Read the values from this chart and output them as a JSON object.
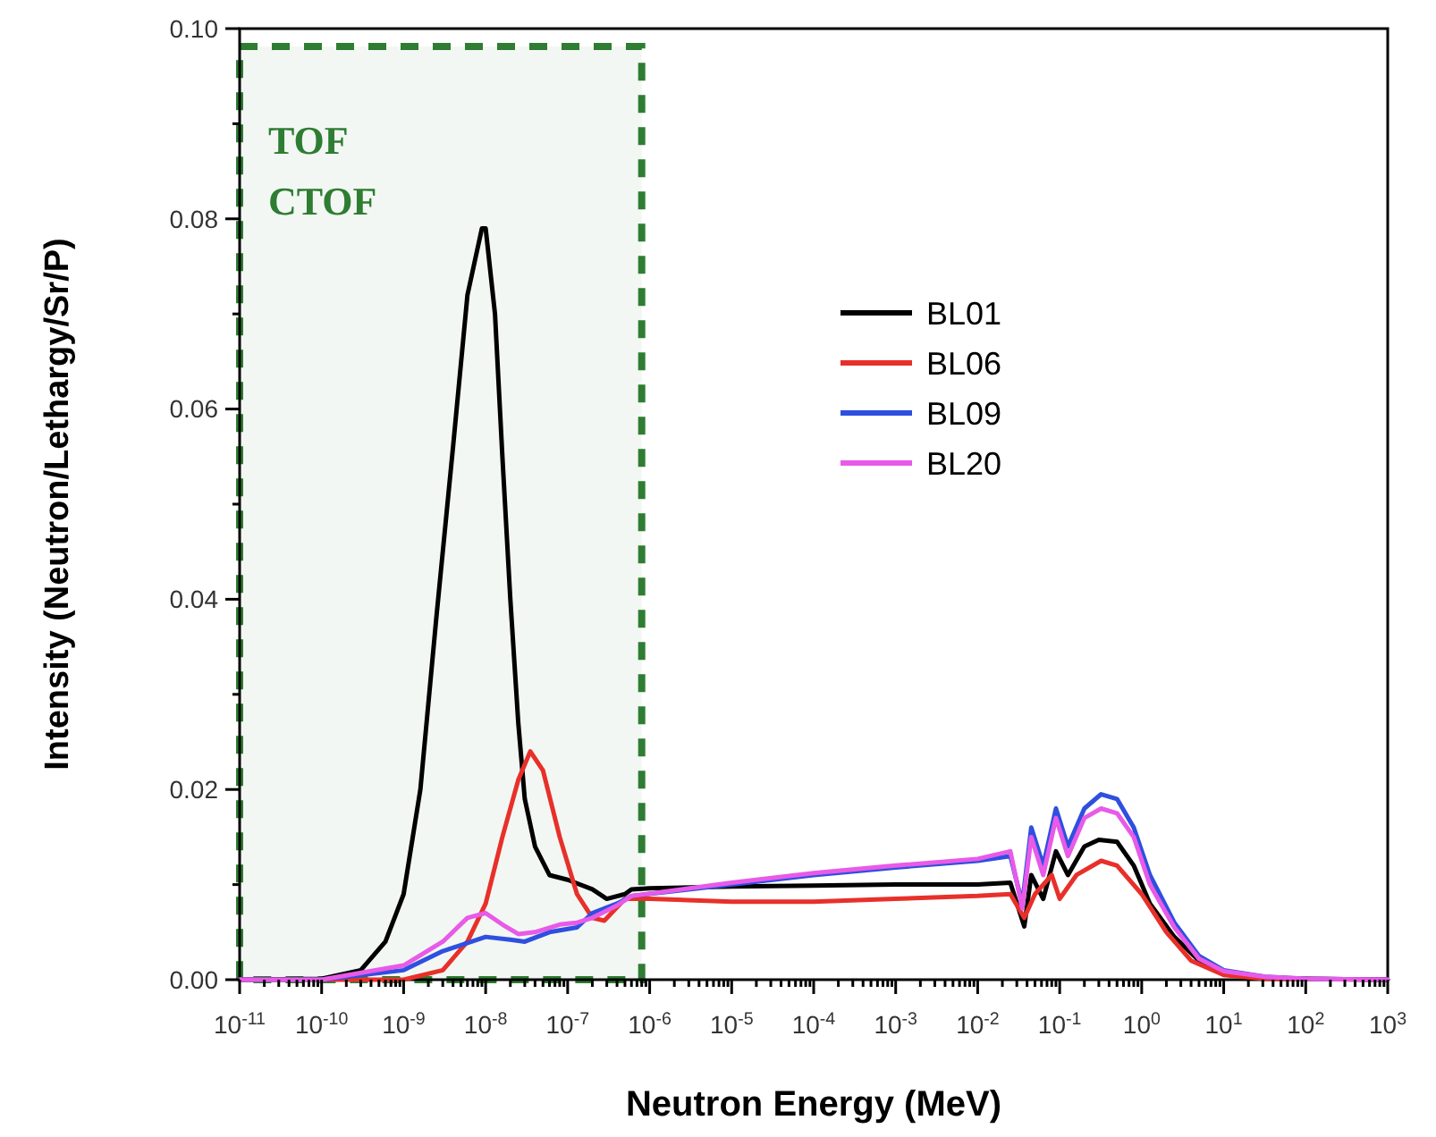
{
  "chart_data": {
    "type": "line",
    "xlabel": "Neutron Energy (MeV)",
    "ylabel": "Intensity (Neutron/Lethargy/Sr/P)",
    "log": "x",
    "legend": "top",
    "xlim": [
      1e-11,
      1000
    ],
    "ylim": [
      0,
      0.1
    ],
    "xticks": [
      {
        "value": 1e-11,
        "label": "10$^{-11}$"
      },
      {
        "value": 1e-10,
        "label": "10$^{-10}$"
      },
      {
        "value": 1e-09,
        "label": "10$^{-9}$"
      },
      {
        "value": 1e-08,
        "label": "10$^{-8}$"
      },
      {
        "value": 1e-07,
        "label": "10$^{-7}$"
      },
      {
        "value": 1e-06,
        "label": "10$^{-6}$"
      },
      {
        "value": 1e-05,
        "label": "10$^{-5}$"
      },
      {
        "value": 0.0001,
        "label": "10$^{-4}$"
      },
      {
        "value": 0.001,
        "label": "10$^{-3}$"
      },
      {
        "value": 0.01,
        "label": "10$^{-2}$"
      },
      {
        "value": 0.1,
        "label": "10$^{-1}$"
      },
      {
        "value": 1,
        "label": "10$^{0}$"
      },
      {
        "value": 10,
        "label": "10$^{1}$"
      },
      {
        "value": 100,
        "label": "10$^{2}$"
      },
      {
        "value": 1000,
        "label": "10$^{3}$"
      }
    ],
    "yticks": [
      {
        "value": 0,
        "label": "0.00"
      },
      {
        "value": 0.01,
        "label": null
      },
      {
        "value": 0.02,
        "label": "0.02"
      },
      {
        "value": 0.03,
        "label": null
      },
      {
        "value": 0.04,
        "label": "0.04"
      },
      {
        "value": 0.05,
        "label": null
      },
      {
        "value": 0.06,
        "label": "0.06"
      },
      {
        "value": 0.07,
        "label": null
      },
      {
        "value": 0.08,
        "label": "0.08"
      },
      {
        "value": 0.09,
        "label": null
      },
      {
        "value": 0.1,
        "label": "0.10"
      }
    ],
    "bands": [
      {
        "axis": "x",
        "from": 1e-11,
        "to": 8e-07,
        "color": "#2e7d32"
      }
    ],
    "annotations": [
      "TOF",
      "CTOF"
    ],
    "series": [
      {
        "name": "BL01",
        "color": "#000000",
        "x": [
          1e-11,
          1e-10,
          3e-10,
          6e-10,
          1e-09,
          1.6e-09,
          2.5e-09,
          4e-09,
          6e-09,
          9e-09,
          1e-08,
          1.3e-08,
          1.6e-08,
          2e-08,
          2.5e-08,
          3e-08,
          4e-08,
          6e-08,
          1e-07,
          2e-07,
          3e-07,
          5e-07,
          6e-07,
          1e-06,
          1e-05,
          0.0001,
          0.001,
          0.01,
          0.025,
          0.037,
          0.045,
          0.063,
          0.09,
          0.126,
          0.2,
          0.3,
          0.5,
          0.8,
          1.26,
          2.5,
          5,
          10,
          32,
          100,
          1000
        ],
        "values": [
          0,
          0.0001,
          0.001,
          0.004,
          0.009,
          0.02,
          0.038,
          0.056,
          0.072,
          0.079,
          0.079,
          0.07,
          0.055,
          0.04,
          0.027,
          0.019,
          0.014,
          0.011,
          0.0105,
          0.0095,
          0.0085,
          0.009,
          0.0095,
          0.0096,
          0.0098,
          0.0099,
          0.01,
          0.01,
          0.0102,
          0.0056,
          0.011,
          0.0085,
          0.0135,
          0.011,
          0.014,
          0.0147,
          0.0145,
          0.012,
          0.008,
          0.0045,
          0.002,
          0.0008,
          0.0002,
          0.0001,
          0
        ]
      },
      {
        "name": "BL06",
        "color": "#e8302a",
        "x": [
          1e-11,
          1e-09,
          3e-09,
          6e-09,
          1e-08,
          1.6e-08,
          2.5e-08,
          3.5e-08,
          5e-08,
          8e-08,
          1.3e-07,
          2e-07,
          2.8e-07,
          5e-07,
          1e-06,
          1e-05,
          0.0001,
          0.001,
          0.01,
          0.025,
          0.037,
          0.05,
          0.08,
          0.1,
          0.16,
          0.32,
          0.5,
          1,
          2,
          4,
          10,
          32,
          1000
        ],
        "values": [
          0,
          0,
          0.001,
          0.004,
          0.008,
          0.015,
          0.021,
          0.024,
          0.022,
          0.015,
          0.009,
          0.0065,
          0.0062,
          0.0085,
          0.0085,
          0.0082,
          0.0082,
          0.0085,
          0.0088,
          0.009,
          0.0065,
          0.009,
          0.011,
          0.0085,
          0.011,
          0.0125,
          0.012,
          0.009,
          0.005,
          0.002,
          0.0005,
          0.0001,
          0
        ]
      },
      {
        "name": "BL09",
        "color": "#2f4fe0",
        "x": [
          1e-11,
          1e-10,
          1e-09,
          3e-09,
          1e-08,
          2e-08,
          3e-08,
          6e-08,
          1.3e-07,
          2e-07,
          4e-07,
          6e-07,
          1e-05,
          0.0001,
          0.001,
          0.01,
          0.025,
          0.035,
          0.045,
          0.063,
          0.09,
          0.126,
          0.2,
          0.32,
          0.5,
          0.8,
          1.26,
          2.5,
          5,
          10,
          32,
          100,
          1000
        ],
        "values": [
          0,
          0,
          0.001,
          0.003,
          0.0045,
          0.0042,
          0.004,
          0.005,
          0.0055,
          0.007,
          0.008,
          0.0088,
          0.01,
          0.011,
          0.0118,
          0.0125,
          0.013,
          0.008,
          0.016,
          0.012,
          0.018,
          0.014,
          0.018,
          0.0195,
          0.019,
          0.016,
          0.011,
          0.006,
          0.0025,
          0.001,
          0.0003,
          0.0001,
          0
        ]
      },
      {
        "name": "BL20",
        "color": "#e85ae8",
        "x": [
          1e-11,
          1e-10,
          1e-09,
          3e-09,
          6e-09,
          1e-08,
          1.6e-08,
          2.5e-08,
          4e-08,
          8e-08,
          1.3e-07,
          2e-07,
          4e-07,
          6e-07,
          1e-05,
          0.0001,
          0.001,
          0.01,
          0.025,
          0.035,
          0.045,
          0.063,
          0.09,
          0.126,
          0.2,
          0.32,
          0.5,
          0.8,
          1.26,
          2.5,
          5,
          10,
          32,
          100,
          1000
        ],
        "values": [
          0,
          0,
          0.0015,
          0.004,
          0.0065,
          0.007,
          0.0058,
          0.0048,
          0.005,
          0.0058,
          0.006,
          0.0065,
          0.0078,
          0.0088,
          0.0102,
          0.0112,
          0.012,
          0.0127,
          0.0135,
          0.0075,
          0.015,
          0.011,
          0.017,
          0.013,
          0.017,
          0.018,
          0.0175,
          0.015,
          0.01,
          0.0055,
          0.0022,
          0.0009,
          0.0003,
          0.0001,
          0
        ]
      }
    ]
  }
}
